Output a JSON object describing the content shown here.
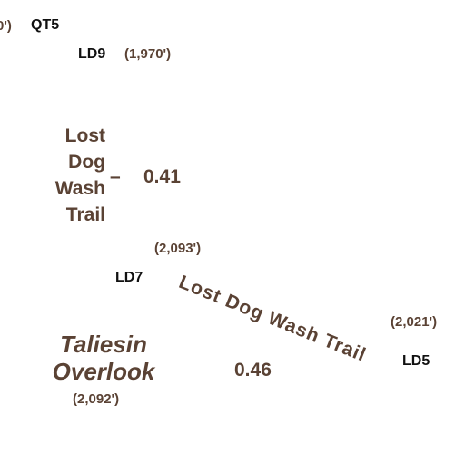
{
  "labels": {
    "partial_elevation_left": "0')",
    "junction_qt5": "QT5",
    "junction_ld9": "LD9",
    "elevation_ld9": "(1,970')",
    "trail_name_vertical": [
      "Lost",
      "Dog",
      "Wash",
      "Trail"
    ],
    "dash": "–",
    "distance_upper": "0.41",
    "elevation_ld7": "(2,093')",
    "junction_ld7": "LD7",
    "trail_name_curved": "Lost Dog Wash Trail",
    "elevation_ld5": "(2,021')",
    "junction_ld5": "LD5",
    "poi_name": [
      "Taliesin",
      "Overlook"
    ],
    "poi_elevation": "(2,092')",
    "distance_lower": "0.46"
  },
  "colors": {
    "trail_text": "#5a4234",
    "junction_text": "#111111",
    "background": "#ffffff"
  }
}
